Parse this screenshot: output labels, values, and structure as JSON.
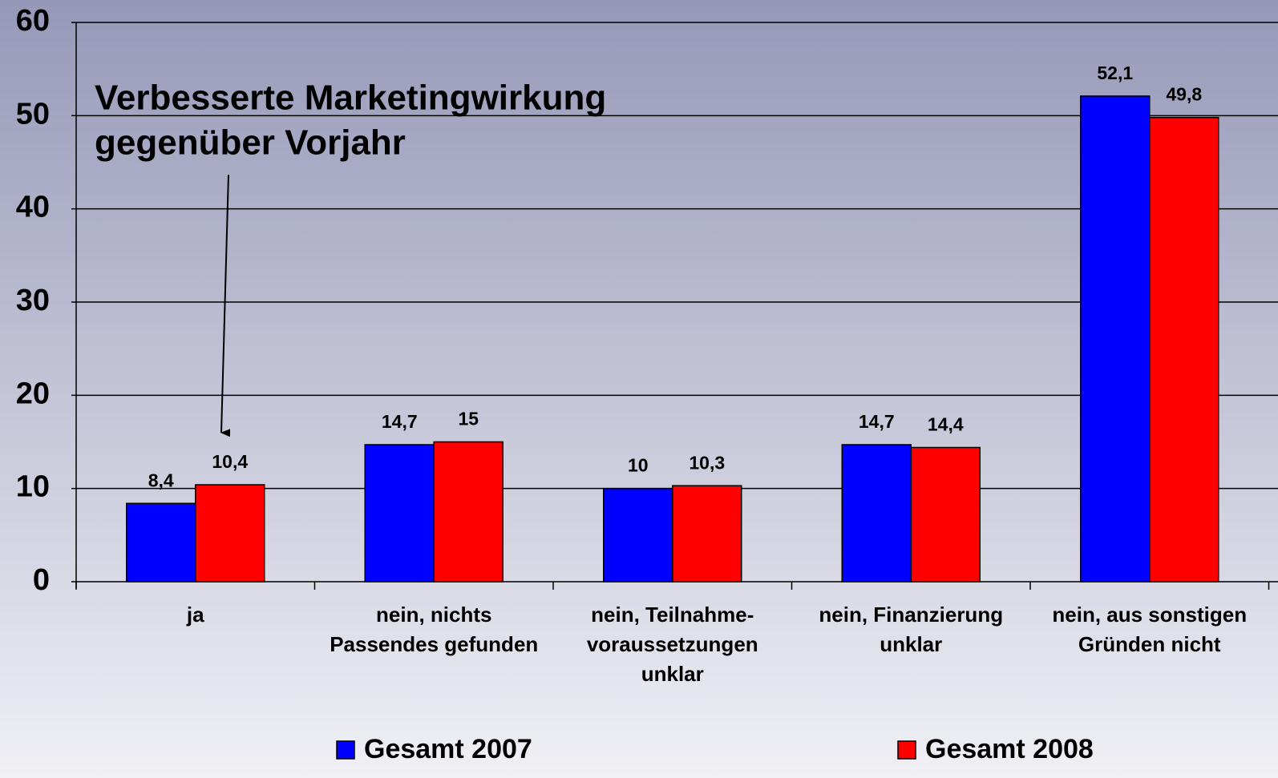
{
  "chart_data": {
    "type": "bar",
    "annotation": [
      "Verbesserte Marketingwirkung",
      "gegenüber Vorjahr"
    ],
    "categories": [
      [
        "ja"
      ],
      [
        "nein, nichts",
        "Passendes gefunden"
      ],
      [
        "nein, Teilnahme-",
        "voraussetzungen",
        "unklar"
      ],
      [
        "nein, Finanzierung",
        "unklar"
      ],
      [
        "nein, aus sonstigen",
        "Gründen nicht"
      ]
    ],
    "series": [
      {
        "name": "Gesamt 2007",
        "color": "#0000ff",
        "values": [
          8.4,
          14.7,
          10,
          14.7,
          52.1
        ],
        "value_labels": [
          "8,4",
          "14,7",
          "10",
          "14,7",
          "52,1"
        ]
      },
      {
        "name": "Gesamt 2008",
        "color": "#ff0000",
        "values": [
          10.4,
          15,
          10.3,
          14.4,
          49.8
        ],
        "value_labels": [
          "10,4",
          "15",
          "10,3",
          "14,4",
          "49,8"
        ]
      }
    ],
    "ylim": [
      0,
      60
    ],
    "yticks": [
      0,
      10,
      20,
      30,
      40,
      50,
      60
    ],
    "grid": true
  }
}
